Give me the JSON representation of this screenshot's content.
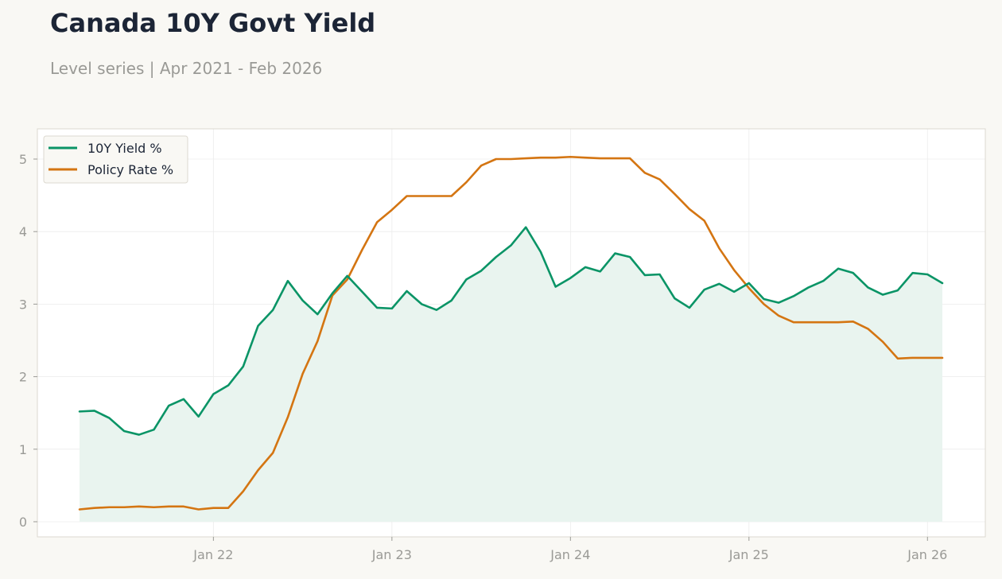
{
  "header": {
    "title": "Canada 10Y Govt Yield",
    "subtitle": "Level series | Apr 2021 - Feb 2026"
  },
  "colors": {
    "yield": "#0a9466",
    "policy": "#d47512",
    "yield_fill": "#e9f4ef",
    "grid": "#ececec",
    "frame": "#dcd9d0",
    "plot_bg": "#ffffff"
  },
  "chart_data": {
    "type": "line",
    "title": "Canada 10Y Govt Yield",
    "subtitle": "Level series | Apr 2021 - Feb 2026",
    "xlabel": "",
    "ylabel": "",
    "x_start": "2021-04",
    "x_end": "2026-02",
    "x": [
      "2021-04",
      "2021-05",
      "2021-06",
      "2021-07",
      "2021-08",
      "2021-09",
      "2021-10",
      "2021-11",
      "2021-12",
      "2022-01",
      "2022-02",
      "2022-03",
      "2022-04",
      "2022-05",
      "2022-06",
      "2022-07",
      "2022-08",
      "2022-09",
      "2022-10",
      "2022-11",
      "2022-12",
      "2023-01",
      "2023-02",
      "2023-03",
      "2023-04",
      "2023-05",
      "2023-06",
      "2023-07",
      "2023-08",
      "2023-09",
      "2023-10",
      "2023-11",
      "2023-12",
      "2024-01",
      "2024-02",
      "2024-03",
      "2024-04",
      "2024-05",
      "2024-06",
      "2024-07",
      "2024-08",
      "2024-09",
      "2024-10",
      "2024-11",
      "2024-12",
      "2025-01",
      "2025-02",
      "2025-03",
      "2025-04",
      "2025-05",
      "2025-06",
      "2025-07",
      "2025-08",
      "2025-09",
      "2025-10",
      "2025-11",
      "2025-12",
      "2026-01",
      "2026-02"
    ],
    "x_ticks": [
      {
        "label": "Jan 22",
        "date": "2022-01"
      },
      {
        "label": "Jan 23",
        "date": "2023-01"
      },
      {
        "label": "Jan 24",
        "date": "2024-01"
      },
      {
        "label": "Jan 25",
        "date": "2025-01"
      },
      {
        "label": "Jan 26",
        "date": "2026-01"
      }
    ],
    "y_ticks": [
      0,
      1,
      2,
      3,
      4,
      5
    ],
    "ylim": [
      -0.2,
      5.4
    ],
    "grid": true,
    "legend_position": "top-left",
    "series": [
      {
        "name": "10Y Yield %",
        "color": "#0a9466",
        "fill": true,
        "values": [
          1.52,
          1.53,
          1.43,
          1.25,
          1.2,
          1.27,
          1.6,
          1.69,
          1.45,
          1.76,
          1.88,
          2.14,
          2.7,
          2.92,
          3.32,
          3.05,
          2.86,
          3.15,
          3.39,
          3.17,
          2.95,
          2.94,
          3.18,
          3.0,
          2.92,
          3.05,
          3.34,
          3.46,
          3.65,
          3.81,
          4.06,
          3.72,
          3.24,
          3.36,
          3.51,
          3.45,
          3.7,
          3.65,
          3.4,
          3.41,
          3.08,
          2.95,
          3.2,
          3.28,
          3.17,
          3.29,
          3.07,
          3.02,
          3.11,
          3.23,
          3.32,
          3.49,
          3.43,
          3.23,
          3.13,
          3.19,
          3.43,
          3.41,
          3.29
        ]
      },
      {
        "name": "Policy Rate %",
        "color": "#d47512",
        "fill": false,
        "values": [
          0.17,
          0.19,
          0.2,
          0.2,
          0.21,
          0.2,
          0.21,
          0.21,
          0.17,
          0.19,
          0.19,
          0.42,
          0.71,
          0.95,
          1.44,
          2.04,
          2.49,
          3.12,
          3.34,
          3.75,
          4.13,
          4.3,
          4.49,
          4.49,
          4.49,
          4.49,
          4.68,
          4.91,
          5.0,
          5.0,
          5.01,
          5.02,
          5.02,
          5.03,
          5.02,
          5.01,
          5.01,
          5.01,
          4.81,
          4.72,
          4.52,
          4.31,
          4.15,
          3.77,
          3.47,
          3.22,
          3.0,
          2.84,
          2.75,
          2.75,
          2.75,
          2.75,
          2.76,
          2.66,
          2.48,
          2.25,
          2.26,
          2.26,
          2.26
        ]
      }
    ]
  }
}
